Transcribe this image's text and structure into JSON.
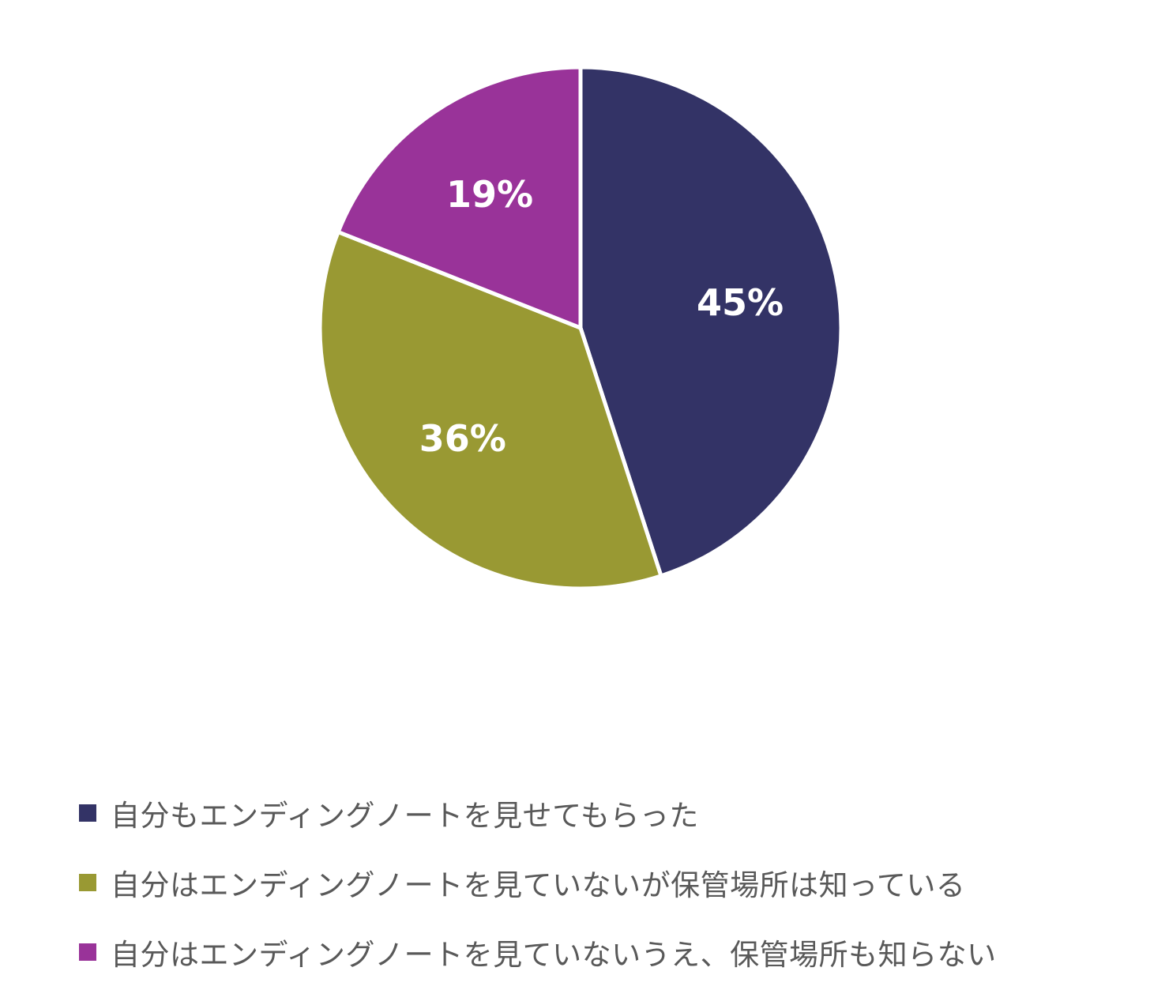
{
  "chart_data": {
    "type": "pie",
    "title": "",
    "start_angle_deg": 0,
    "direction": "clockwise",
    "legend_position": "bottom-left",
    "slices": [
      {
        "label": "自分もエンディングノートを見せてもらった",
        "value": 45,
        "display": "45%",
        "color": "#333366"
      },
      {
        "label": "自分はエンディングノートを見ていないが保管場所は知っている",
        "value": 36,
        "display": "36%",
        "color": "#999933"
      },
      {
        "label": "自分はエンディングノートを見ていないうえ、保管場所も知らない",
        "value": 19,
        "display": "19%",
        "color": "#993399"
      }
    ]
  }
}
